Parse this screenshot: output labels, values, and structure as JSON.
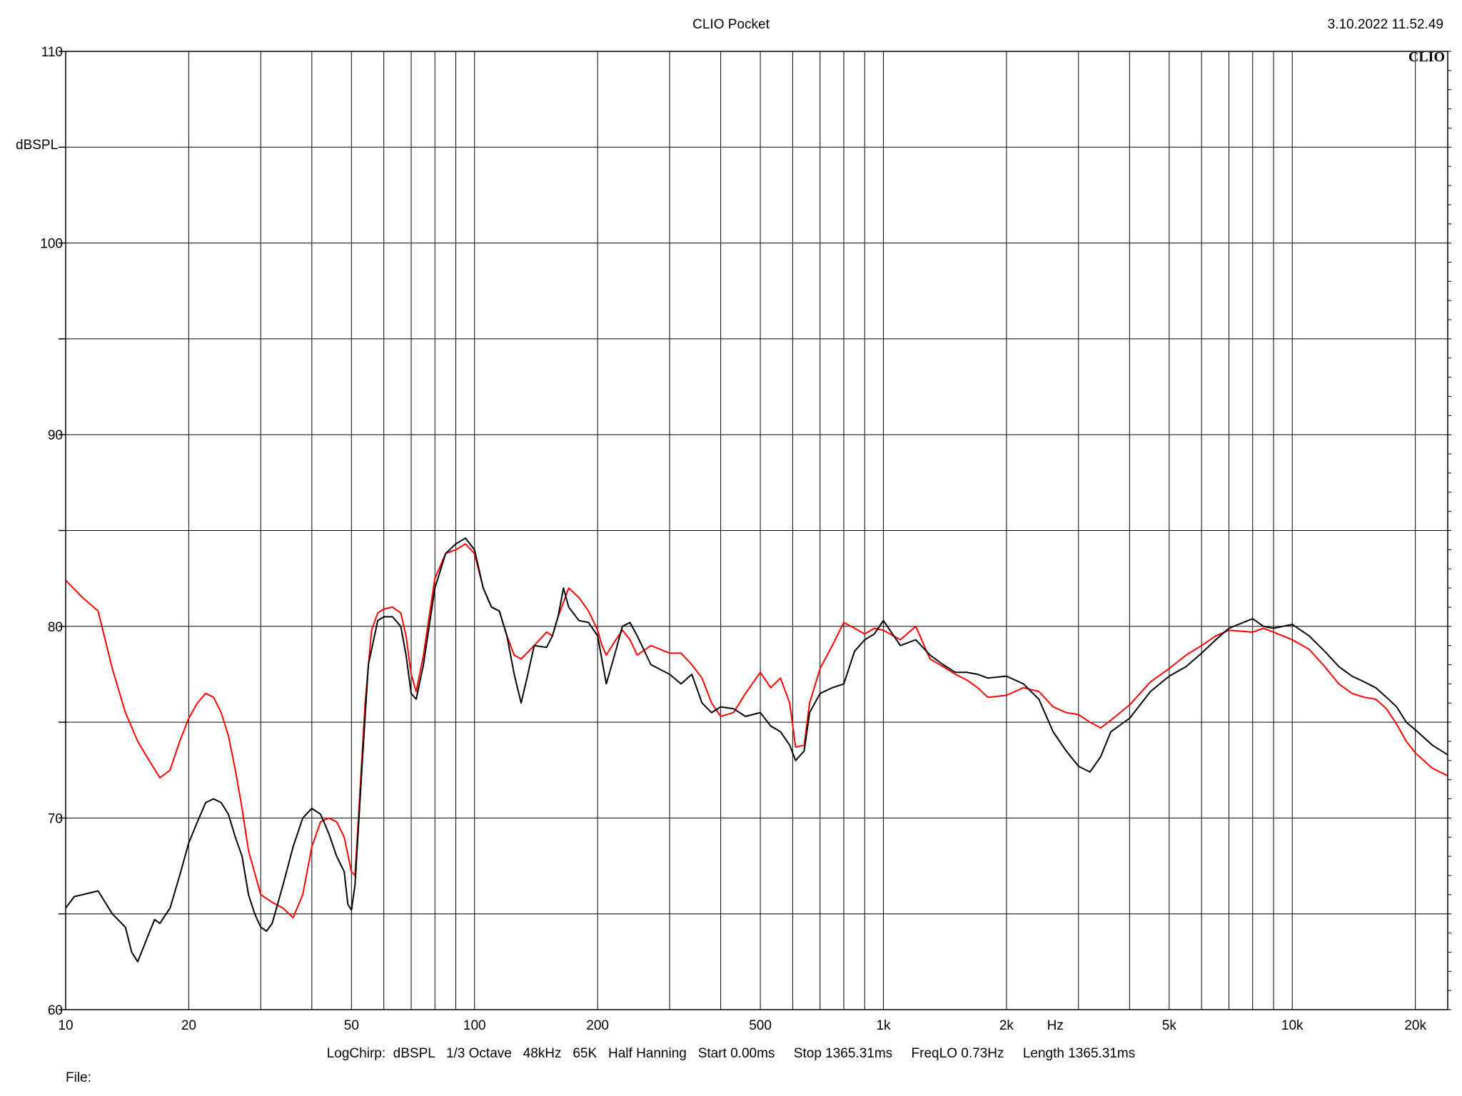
{
  "header": {
    "title": "CLIO Pocket",
    "timestamp": "3.10.2022 11.52.49"
  },
  "footer": {
    "settings": "LogChirp:  dBSPL   1/3 Octave   48kHz   65K   Half Hanning   Start 0.00ms     Stop 1365.31ms     FreqLO 0.73Hz     Length 1365.31ms",
    "file_label": "File:"
  },
  "chart_data": {
    "type": "line",
    "title": "",
    "xlabel": "Hz",
    "ylabel": "dBSPL",
    "watermark": "CLIO",
    "xscale": "log",
    "xlim": [
      10,
      24000
    ],
    "ylim": [
      60,
      110
    ],
    "grid": true,
    "x_ticks": [
      {
        "value": 10,
        "label": "10"
      },
      {
        "value": 20,
        "label": "20"
      },
      {
        "value": 50,
        "label": "50"
      },
      {
        "value": 100,
        "label": "100"
      },
      {
        "value": 200,
        "label": "200"
      },
      {
        "value": 500,
        "label": "500"
      },
      {
        "value": 1000,
        "label": "1k"
      },
      {
        "value": 2000,
        "label": "2k"
      },
      {
        "value": 5000,
        "label": "5k"
      },
      {
        "value": 10000,
        "label": "10k"
      },
      {
        "value": 20000,
        "label": "20k"
      }
    ],
    "x_gridlines": [
      10,
      20,
      30,
      40,
      50,
      60,
      70,
      80,
      90,
      100,
      200,
      300,
      400,
      500,
      600,
      700,
      800,
      900,
      1000,
      2000,
      3000,
      4000,
      5000,
      6000,
      7000,
      8000,
      9000,
      10000,
      20000
    ],
    "y_ticks": [
      {
        "value": 60,
        "label": "60"
      },
      {
        "value": 70,
        "label": "70"
      },
      {
        "value": 80,
        "label": "80"
      },
      {
        "value": 90,
        "label": "90"
      },
      {
        "value": 100,
        "label": "100"
      },
      {
        "value": 110,
        "label": "110"
      }
    ],
    "y_gridlines": [
      60,
      65,
      70,
      75,
      80,
      85,
      90,
      95,
      100,
      105,
      110
    ],
    "series": [
      {
        "color": "#ff0000",
        "points": [
          [
            10,
            82.4
          ],
          [
            11,
            81.5
          ],
          [
            12,
            80.8
          ],
          [
            13,
            77.8
          ],
          [
            14,
            75.5
          ],
          [
            15,
            74.0
          ],
          [
            16,
            73.0
          ],
          [
            17,
            72.1
          ],
          [
            18,
            72.5
          ],
          [
            19,
            74.0
          ],
          [
            20,
            75.2
          ],
          [
            21,
            76.0
          ],
          [
            22,
            76.5
          ],
          [
            23,
            76.3
          ],
          [
            24,
            75.5
          ],
          [
            25,
            74.3
          ],
          [
            26,
            72.5
          ],
          [
            27,
            70.5
          ],
          [
            28,
            68.3
          ],
          [
            30,
            66.0
          ],
          [
            32,
            65.6
          ],
          [
            34,
            65.3
          ],
          [
            36,
            64.8
          ],
          [
            38,
            66.0
          ],
          [
            40,
            68.5
          ],
          [
            42,
            69.8
          ],
          [
            44,
            70.0
          ],
          [
            46,
            69.8
          ],
          [
            48,
            69.0
          ],
          [
            50,
            67.2
          ],
          [
            51,
            67.0
          ],
          [
            52,
            70.0
          ],
          [
            54,
            76.0
          ],
          [
            56,
            79.8
          ],
          [
            58,
            80.7
          ],
          [
            60,
            80.9
          ],
          [
            63,
            81.0
          ],
          [
            66,
            80.7
          ],
          [
            68,
            79.5
          ],
          [
            70,
            77.5
          ],
          [
            72,
            76.6
          ],
          [
            75,
            78.5
          ],
          [
            80,
            82.5
          ],
          [
            85,
            83.8
          ],
          [
            90,
            84.0
          ],
          [
            95,
            84.3
          ],
          [
            100,
            83.8
          ],
          [
            105,
            82.0
          ],
          [
            110,
            81.0
          ],
          [
            115,
            80.8
          ],
          [
            120,
            79.5
          ],
          [
            125,
            78.5
          ],
          [
            130,
            78.3
          ],
          [
            140,
            79.0
          ],
          [
            150,
            79.7
          ],
          [
            155,
            79.5
          ],
          [
            160,
            80.5
          ],
          [
            170,
            82.0
          ],
          [
            180,
            81.5
          ],
          [
            190,
            80.8
          ],
          [
            200,
            79.8
          ],
          [
            205,
            79.0
          ],
          [
            210,
            78.5
          ],
          [
            220,
            79.2
          ],
          [
            230,
            79.8
          ],
          [
            240,
            79.3
          ],
          [
            250,
            78.5
          ],
          [
            270,
            79.0
          ],
          [
            300,
            78.6
          ],
          [
            320,
            78.6
          ],
          [
            340,
            78.0
          ],
          [
            360,
            77.3
          ],
          [
            380,
            76.0
          ],
          [
            400,
            75.3
          ],
          [
            430,
            75.5
          ],
          [
            460,
            76.5
          ],
          [
            500,
            77.6
          ],
          [
            530,
            76.8
          ],
          [
            560,
            77.3
          ],
          [
            590,
            76.0
          ],
          [
            610,
            73.7
          ],
          [
            640,
            73.8
          ],
          [
            660,
            76.0
          ],
          [
            700,
            77.8
          ],
          [
            750,
            79.0
          ],
          [
            800,
            80.2
          ],
          [
            850,
            79.9
          ],
          [
            900,
            79.6
          ],
          [
            950,
            79.9
          ],
          [
            1000,
            79.8
          ],
          [
            1100,
            79.3
          ],
          [
            1200,
            80.0
          ],
          [
            1300,
            78.3
          ],
          [
            1400,
            77.9
          ],
          [
            1500,
            77.5
          ],
          [
            1600,
            77.2
          ],
          [
            1700,
            76.8
          ],
          [
            1800,
            76.3
          ],
          [
            2000,
            76.4
          ],
          [
            2200,
            76.8
          ],
          [
            2400,
            76.6
          ],
          [
            2600,
            75.8
          ],
          [
            2800,
            75.5
          ],
          [
            3000,
            75.4
          ],
          [
            3200,
            75.0
          ],
          [
            3400,
            74.7
          ],
          [
            3600,
            75.1
          ],
          [
            4000,
            75.9
          ],
          [
            4500,
            77.1
          ],
          [
            5000,
            77.8
          ],
          [
            5500,
            78.5
          ],
          [
            6000,
            79.0
          ],
          [
            6500,
            79.5
          ],
          [
            7000,
            79.8
          ],
          [
            8000,
            79.7
          ],
          [
            8500,
            79.9
          ],
          [
            9000,
            79.7
          ],
          [
            10000,
            79.3
          ],
          [
            11000,
            78.8
          ],
          [
            12000,
            77.9
          ],
          [
            13000,
            77.0
          ],
          [
            14000,
            76.5
          ],
          [
            15000,
            76.3
          ],
          [
            16000,
            76.2
          ],
          [
            17000,
            75.7
          ],
          [
            18000,
            74.9
          ],
          [
            19000,
            74.0
          ],
          [
            20000,
            73.4
          ],
          [
            22000,
            72.6
          ],
          [
            24000,
            72.2
          ]
        ]
      },
      {
        "color": "#000000",
        "points": [
          [
            10,
            65.3
          ],
          [
            10.5,
            65.9
          ],
          [
            11,
            66.0
          ],
          [
            12,
            66.2
          ],
          [
            13,
            65.0
          ],
          [
            14,
            64.3
          ],
          [
            14.5,
            63.0
          ],
          [
            15,
            62.5
          ],
          [
            16,
            64.0
          ],
          [
            16.5,
            64.7
          ],
          [
            17,
            64.5
          ],
          [
            18,
            65.3
          ],
          [
            19,
            67.0
          ],
          [
            20,
            68.7
          ],
          [
            21,
            69.8
          ],
          [
            22,
            70.8
          ],
          [
            23,
            71.0
          ],
          [
            24,
            70.8
          ],
          [
            25,
            70.2
          ],
          [
            26,
            69.0
          ],
          [
            27,
            68.0
          ],
          [
            28,
            66.0
          ],
          [
            29,
            65.0
          ],
          [
            30,
            64.3
          ],
          [
            31,
            64.1
          ],
          [
            32,
            64.5
          ],
          [
            34,
            66.5
          ],
          [
            36,
            68.5
          ],
          [
            38,
            70.0
          ],
          [
            40,
            70.5
          ],
          [
            42,
            70.2
          ],
          [
            44,
            69.2
          ],
          [
            46,
            68.0
          ],
          [
            48,
            67.2
          ],
          [
            49,
            65.5
          ],
          [
            50,
            65.2
          ],
          [
            51,
            66.5
          ],
          [
            53,
            72.5
          ],
          [
            55,
            78.0
          ],
          [
            58,
            80.3
          ],
          [
            60,
            80.5
          ],
          [
            63,
            80.5
          ],
          [
            66,
            80.0
          ],
          [
            68,
            78.5
          ],
          [
            70,
            76.5
          ],
          [
            72,
            76.2
          ],
          [
            75,
            78.0
          ],
          [
            80,
            82.0
          ],
          [
            85,
            83.8
          ],
          [
            90,
            84.3
          ],
          [
            95,
            84.6
          ],
          [
            100,
            84.0
          ],
          [
            105,
            82.0
          ],
          [
            110,
            81.0
          ],
          [
            115,
            80.8
          ],
          [
            120,
            79.5
          ],
          [
            125,
            77.5
          ],
          [
            130,
            76.0
          ],
          [
            135,
            77.5
          ],
          [
            140,
            79.0
          ],
          [
            150,
            78.9
          ],
          [
            155,
            79.5
          ],
          [
            160,
            80.5
          ],
          [
            165,
            82.0
          ],
          [
            170,
            81.0
          ],
          [
            180,
            80.3
          ],
          [
            190,
            80.2
          ],
          [
            200,
            79.5
          ],
          [
            210,
            77.0
          ],
          [
            220,
            78.5
          ],
          [
            230,
            80.0
          ],
          [
            240,
            80.2
          ],
          [
            250,
            79.5
          ],
          [
            270,
            78.0
          ],
          [
            300,
            77.5
          ],
          [
            320,
            77.0
          ],
          [
            340,
            77.5
          ],
          [
            360,
            76.0
          ],
          [
            380,
            75.5
          ],
          [
            400,
            75.8
          ],
          [
            430,
            75.7
          ],
          [
            460,
            75.3
          ],
          [
            500,
            75.5
          ],
          [
            530,
            74.8
          ],
          [
            560,
            74.5
          ],
          [
            590,
            73.8
          ],
          [
            610,
            73.0
          ],
          [
            640,
            73.5
          ],
          [
            660,
            75.5
          ],
          [
            700,
            76.5
          ],
          [
            750,
            76.8
          ],
          [
            800,
            77.0
          ],
          [
            850,
            78.7
          ],
          [
            900,
            79.3
          ],
          [
            950,
            79.6
          ],
          [
            1000,
            80.3
          ],
          [
            1100,
            79.0
          ],
          [
            1200,
            79.3
          ],
          [
            1300,
            78.5
          ],
          [
            1400,
            78.0
          ],
          [
            1500,
            77.6
          ],
          [
            1600,
            77.6
          ],
          [
            1700,
            77.5
          ],
          [
            1800,
            77.3
          ],
          [
            2000,
            77.4
          ],
          [
            2200,
            77.0
          ],
          [
            2400,
            76.2
          ],
          [
            2600,
            74.5
          ],
          [
            2800,
            73.5
          ],
          [
            3000,
            72.7
          ],
          [
            3200,
            72.4
          ],
          [
            3400,
            73.2
          ],
          [
            3600,
            74.5
          ],
          [
            4000,
            75.2
          ],
          [
            4500,
            76.6
          ],
          [
            5000,
            77.4
          ],
          [
            5500,
            77.9
          ],
          [
            6000,
            78.6
          ],
          [
            6500,
            79.3
          ],
          [
            7000,
            79.9
          ],
          [
            8000,
            80.4
          ],
          [
            8500,
            80.0
          ],
          [
            9000,
            79.9
          ],
          [
            10000,
            80.1
          ],
          [
            11000,
            79.5
          ],
          [
            12000,
            78.7
          ],
          [
            13000,
            77.9
          ],
          [
            14000,
            77.4
          ],
          [
            15000,
            77.1
          ],
          [
            16000,
            76.8
          ],
          [
            17000,
            76.3
          ],
          [
            18000,
            75.8
          ],
          [
            19000,
            75.0
          ],
          [
            20000,
            74.6
          ],
          [
            22000,
            73.8
          ],
          [
            24000,
            73.3
          ]
        ]
      }
    ]
  }
}
